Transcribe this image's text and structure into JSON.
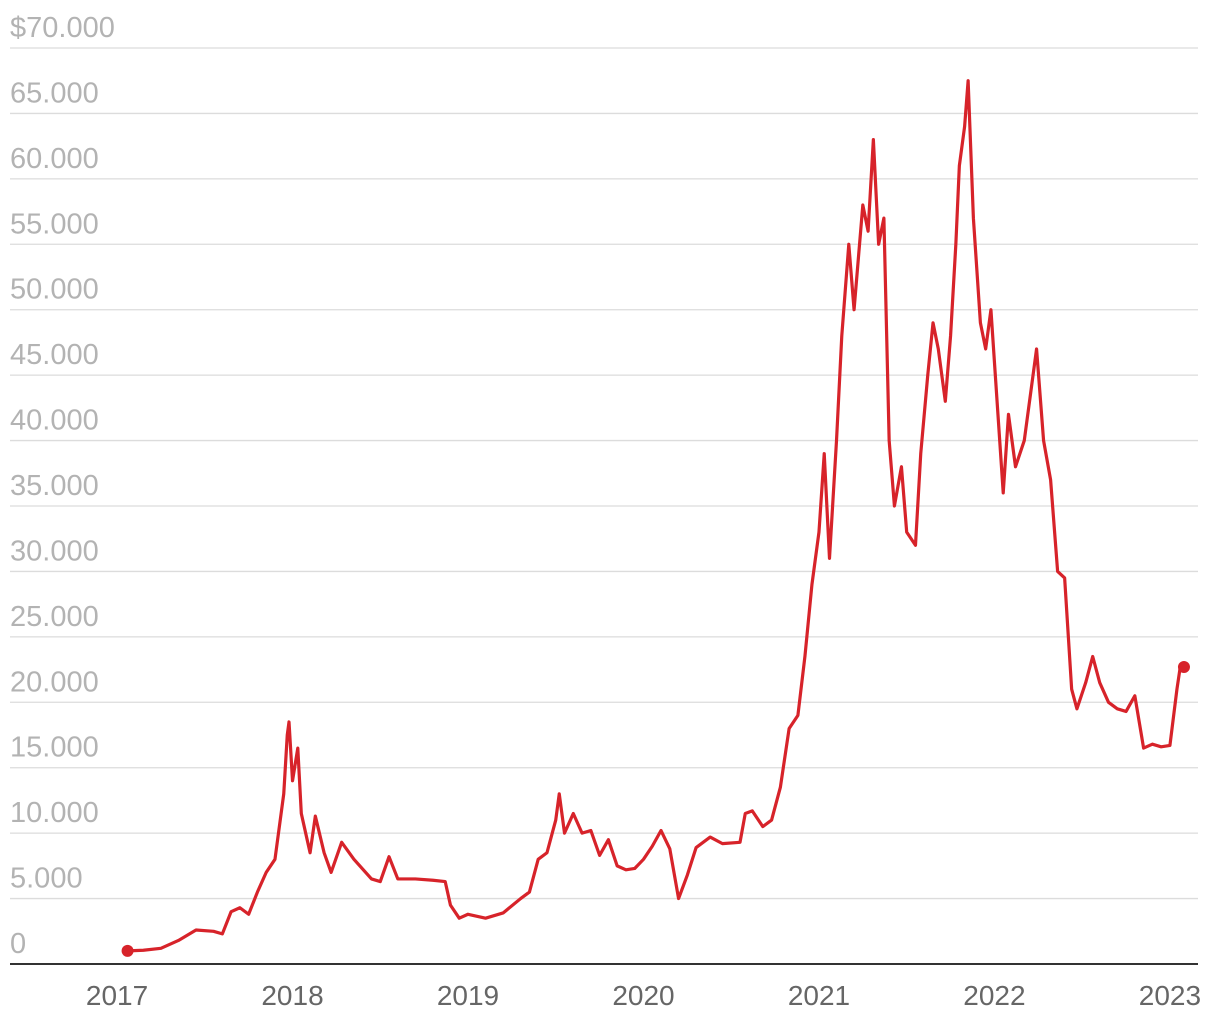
{
  "chart_data": {
    "type": "line",
    "x": [
      2017.06,
      2017.15,
      2017.25,
      2017.35,
      2017.45,
      2017.55,
      2017.6,
      2017.65,
      2017.7,
      2017.75,
      2017.8,
      2017.85,
      2017.9,
      2017.95,
      2017.97,
      2017.98,
      2018.0,
      2018.03,
      2018.05,
      2018.1,
      2018.13,
      2018.18,
      2018.22,
      2018.28,
      2018.35,
      2018.45,
      2018.5,
      2018.55,
      2018.6,
      2018.7,
      2018.8,
      2018.87,
      2018.9,
      2018.95,
      2019.0,
      2019.1,
      2019.2,
      2019.3,
      2019.35,
      2019.4,
      2019.45,
      2019.5,
      2019.52,
      2019.55,
      2019.6,
      2019.65,
      2019.7,
      2019.75,
      2019.8,
      2019.85,
      2019.9,
      2019.95,
      2020.0,
      2020.05,
      2020.1,
      2020.15,
      2020.2,
      2020.25,
      2020.3,
      2020.38,
      2020.45,
      2020.55,
      2020.58,
      2020.62,
      2020.68,
      2020.73,
      2020.78,
      2020.83,
      2020.88,
      2020.92,
      2020.96,
      2021.0,
      2021.03,
      2021.06,
      2021.1,
      2021.13,
      2021.17,
      2021.2,
      2021.25,
      2021.28,
      2021.31,
      2021.34,
      2021.37,
      2021.4,
      2021.43,
      2021.47,
      2021.5,
      2021.55,
      2021.58,
      2021.62,
      2021.65,
      2021.68,
      2021.72,
      2021.75,
      2021.78,
      2021.8,
      2021.83,
      2021.85,
      2021.88,
      2021.92,
      2021.95,
      2021.98,
      2022.02,
      2022.05,
      2022.08,
      2022.12,
      2022.17,
      2022.21,
      2022.24,
      2022.28,
      2022.32,
      2022.36,
      2022.4,
      2022.44,
      2022.47,
      2022.52,
      2022.56,
      2022.6,
      2022.65,
      2022.7,
      2022.75,
      2022.8,
      2022.85,
      2022.9,
      2022.95,
      2023.0,
      2023.04,
      2023.06,
      2023.08
    ],
    "values": [
      1000,
      1050,
      1200,
      1800,
      2600,
      2500,
      2300,
      4000,
      4300,
      3800,
      5500,
      7000,
      8000,
      13000,
      17500,
      18500,
      14000,
      16500,
      11500,
      8500,
      11300,
      8500,
      7000,
      9300,
      8000,
      6500,
      6300,
      8200,
      6500,
      6500,
      6400,
      6300,
      4500,
      3500,
      3800,
      3500,
      3900,
      5000,
      5500,
      8000,
      8500,
      11000,
      13000,
      10000,
      11500,
      10000,
      10200,
      8300,
      9500,
      7500,
      7200,
      7300,
      8000,
      9000,
      10200,
      8800,
      5000,
      6800,
      8900,
      9700,
      9200,
      9300,
      11500,
      11700,
      10500,
      11000,
      13500,
      18000,
      19000,
      23500,
      29000,
      33000,
      39000,
      31000,
      40000,
      48000,
      55000,
      50000,
      58000,
      56000,
      63000,
      55000,
      57000,
      40000,
      35000,
      38000,
      33000,
      32000,
      39000,
      45000,
      49000,
      47000,
      43000,
      48000,
      55000,
      61000,
      64000,
      67500,
      57000,
      49000,
      47000,
      50000,
      42000,
      36000,
      42000,
      38000,
      40000,
      44000,
      47000,
      40000,
      37000,
      30000,
      29500,
      21000,
      19500,
      21500,
      23500,
      21500,
      20000,
      19500,
      19300,
      20500,
      16500,
      16800,
      16600,
      16700,
      21000,
      22800,
      22700
    ],
    "color": "#d7232a",
    "end_markers": true,
    "xlim": [
      2016.39,
      2023.16
    ],
    "xticks": [
      2017,
      2018,
      2019,
      2020,
      2021,
      2022,
      2023
    ],
    "ylim": [
      0,
      70000
    ],
    "yticks": [
      0,
      {
        "value": 5000,
        "label": "5.000"
      },
      {
        "value": 10000,
        "label": "10.000"
      },
      {
        "value": 15000,
        "label": "15.000"
      },
      {
        "value": 20000,
        "label": "20.000"
      },
      {
        "value": 25000,
        "label": "25.000"
      },
      {
        "value": 30000,
        "label": "30.000"
      },
      {
        "value": 35000,
        "label": "35.000"
      },
      {
        "value": 40000,
        "label": "40.000"
      },
      {
        "value": 45000,
        "label": "45.000"
      },
      {
        "value": 50000,
        "label": "50.000"
      },
      {
        "value": 55000,
        "label": "55.000"
      },
      {
        "value": 60000,
        "label": "60.000"
      },
      {
        "value": 65000,
        "label": "65.000"
      },
      {
        "value": 70000,
        "label": "$70.000"
      }
    ],
    "grid": true
  }
}
